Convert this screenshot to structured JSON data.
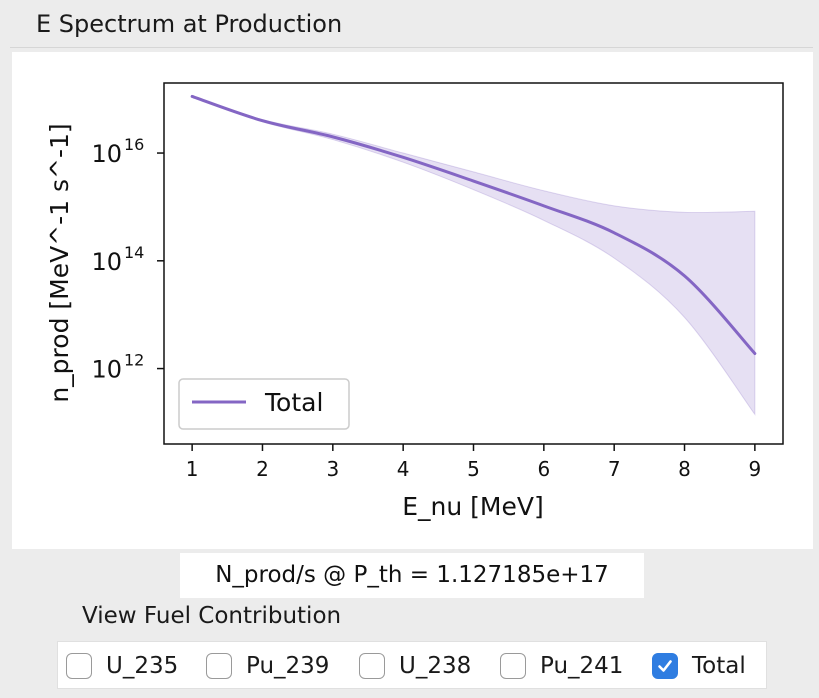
{
  "panel": {
    "title": "E Spectrum at Production"
  },
  "chart_data": {
    "type": "line",
    "title": "",
    "xlabel": "E_nu [MeV]",
    "ylabel": "n_prod [MeV^-1 s^-1]",
    "xlim": [
      0.6,
      9.4
    ],
    "ylim_log10": [
      10.6,
      17.3
    ],
    "y_scale": "log",
    "x_ticks": [
      "1",
      "2",
      "3",
      "4",
      "5",
      "6",
      "7",
      "8",
      "9"
    ],
    "y_ticks": [
      {
        "base": "10",
        "exp": "16"
      },
      {
        "base": "10",
        "exp": "14"
      },
      {
        "base": "10",
        "exp": "12"
      }
    ],
    "legend": {
      "position": "lower-left",
      "entries": [
        "Total"
      ]
    },
    "grid": false,
    "series": [
      {
        "name": "Total",
        "color": "#8466c4",
        "x": [
          1,
          2,
          3,
          4,
          5,
          6,
          7,
          8,
          9
        ],
        "log10_y": [
          17.05,
          16.6,
          16.3,
          15.92,
          15.48,
          15.02,
          14.52,
          13.72,
          12.28
        ],
        "band_upper_log10": [
          17.05,
          16.62,
          16.35,
          16.0,
          15.65,
          15.3,
          15.02,
          14.9,
          14.92
        ],
        "band_lower_log10": [
          17.05,
          16.58,
          16.25,
          15.83,
          15.32,
          14.75,
          14.05,
          12.95,
          11.15
        ]
      }
    ]
  },
  "summary": {
    "text": "N_prod/s @ P_th = 1.127185e+17"
  },
  "fuel": {
    "label": "View Fuel Contribution",
    "options": [
      {
        "label": "U_235",
        "checked": false
      },
      {
        "label": "Pu_239",
        "checked": false
      },
      {
        "label": "U_238",
        "checked": false
      },
      {
        "label": "Pu_241",
        "checked": false
      },
      {
        "label": "Total",
        "checked": true
      }
    ]
  }
}
